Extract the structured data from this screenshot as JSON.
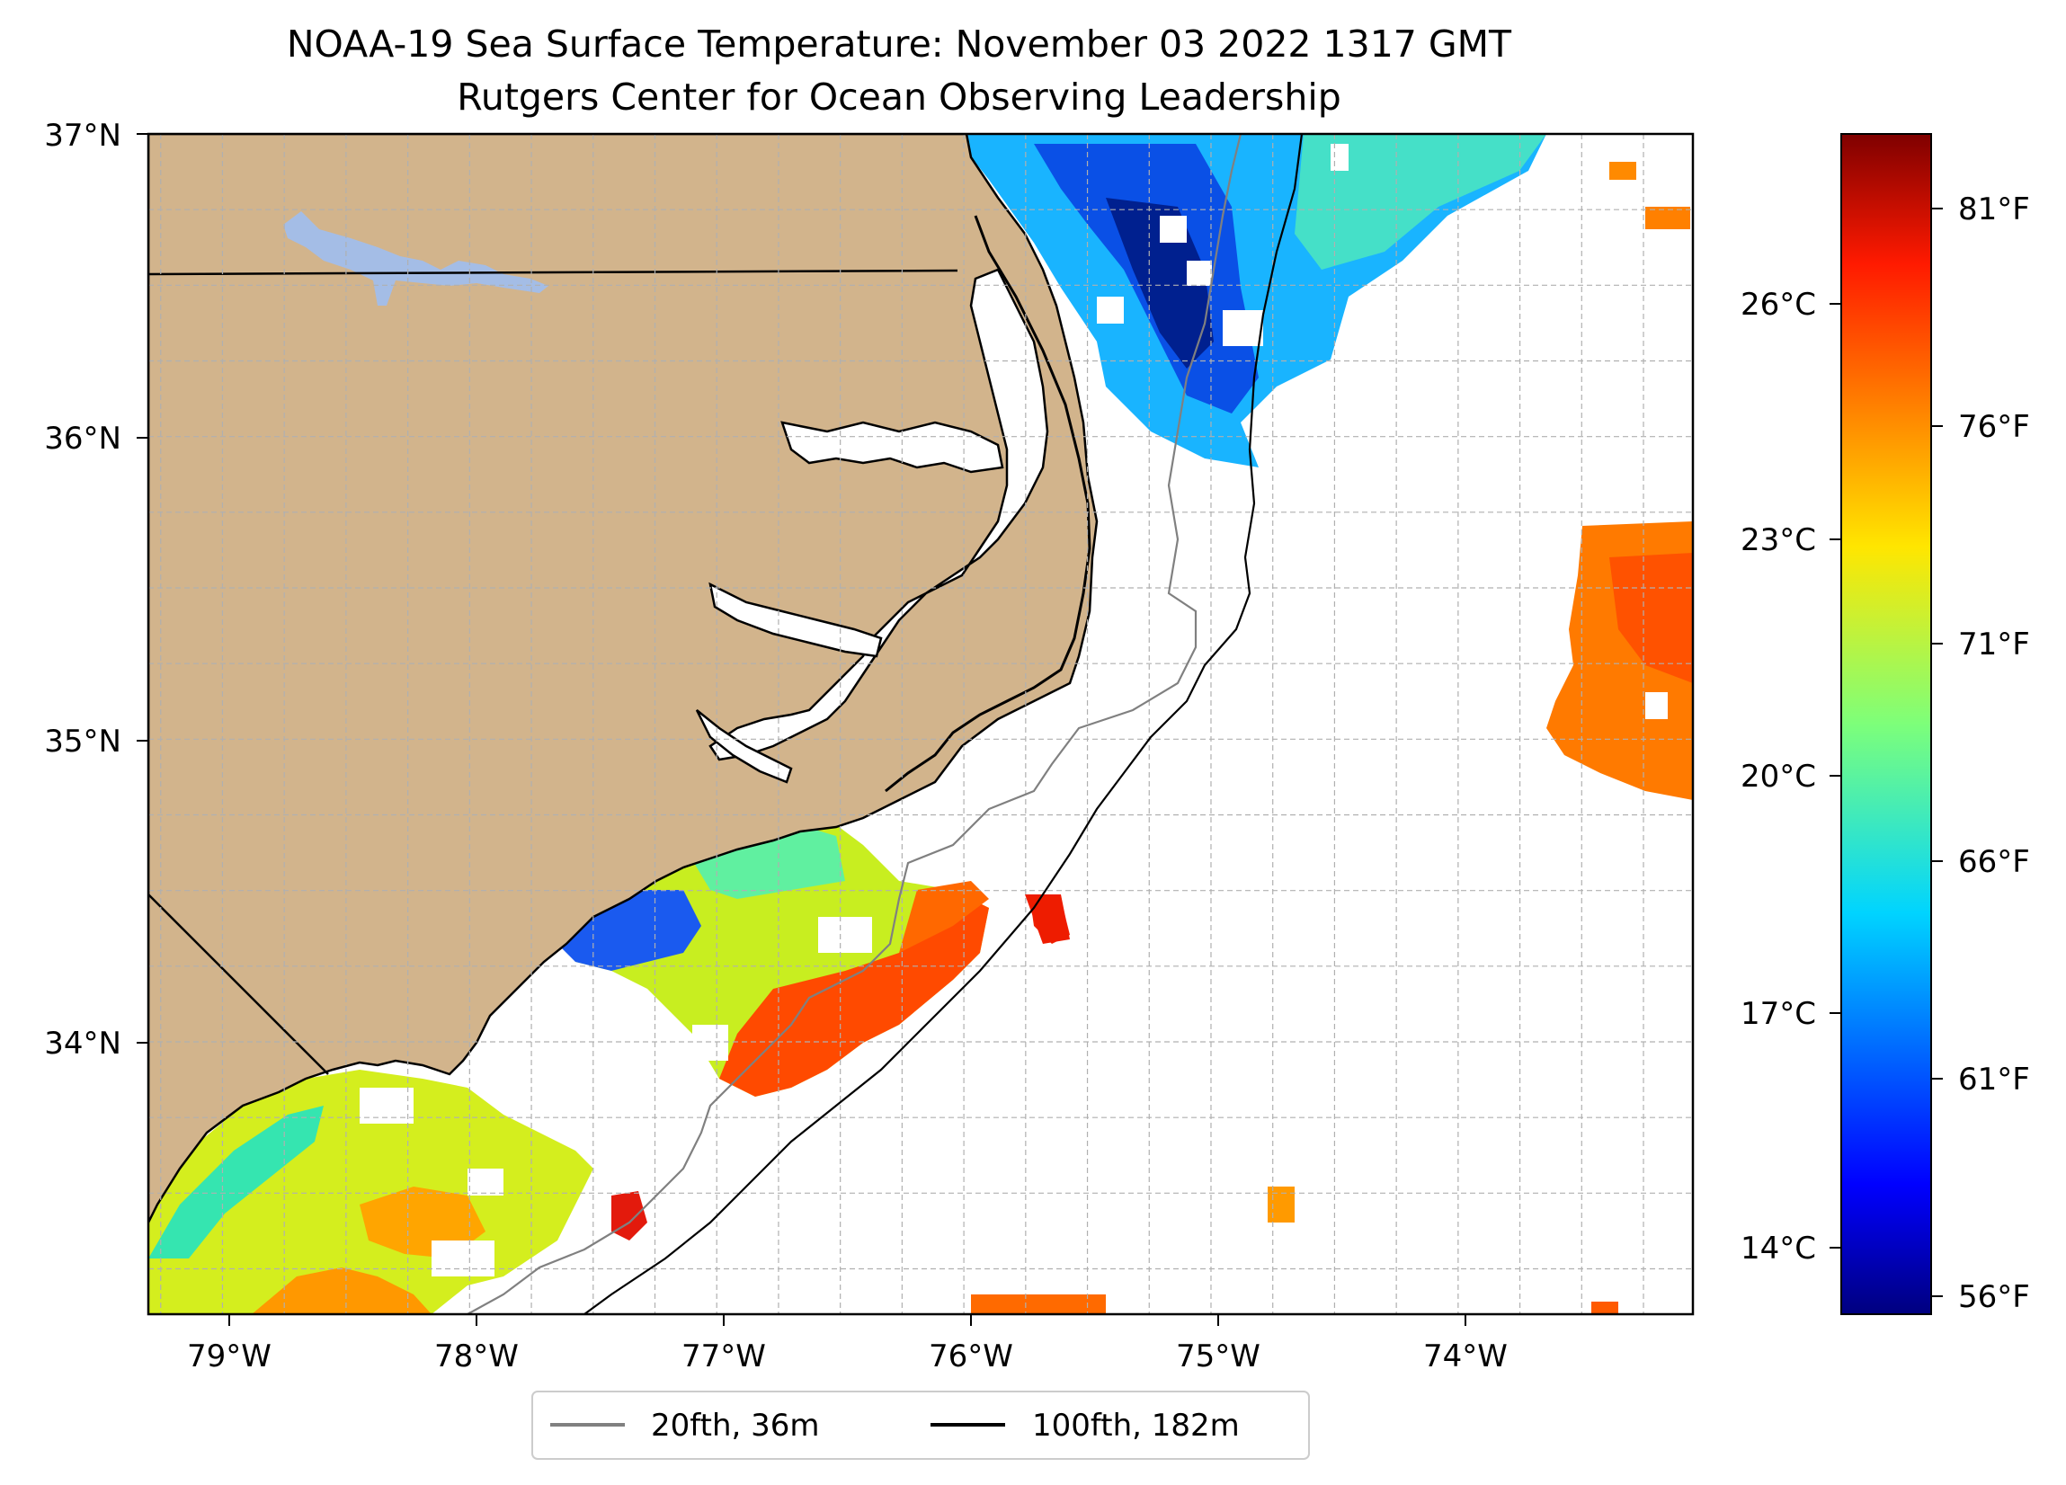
{
  "title": {
    "line1": "NOAA-19 Sea Surface Temperature: November 03 2022 1317 GMT",
    "line2": "Rutgers Center for Ocean Observing Leadership"
  },
  "map": {
    "lat_labels": [
      "37°N",
      "36°N",
      "35°N",
      "34°N"
    ],
    "lon_labels": [
      "79°W",
      "78°W",
      "77°W",
      "76°W",
      "75°W",
      "74°W"
    ],
    "land_color": "#d2b48c",
    "lake_color": "#a4bde6",
    "extent": {
      "lon": [
        -79.3,
        -73.05
      ],
      "lat": [
        33.1,
        37.0
      ]
    }
  },
  "colorbar": {
    "celsius_labels": [
      "26°C",
      "23°C",
      "20°C",
      "17°C",
      "14°C"
    ],
    "fahrenheit_labels": [
      "81°F",
      "76°F",
      "71°F",
      "66°F",
      "61°F",
      "56°F"
    ],
    "colormap": "jet"
  },
  "legend": {
    "items": [
      {
        "label": "20fth, 36m",
        "color": "#808080"
      },
      {
        "label": "100fth, 182m",
        "color": "#000000"
      }
    ]
  }
}
